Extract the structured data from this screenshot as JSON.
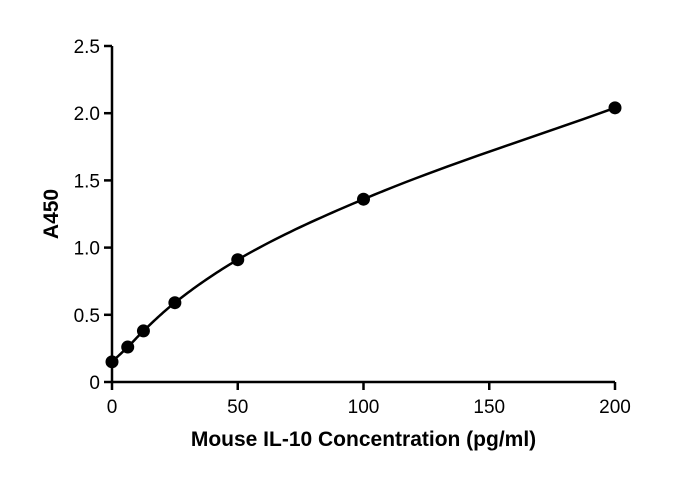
{
  "chart_data": {
    "type": "scatter",
    "title": "",
    "xlabel": "Mouse IL-10 Concentration (pg/ml)",
    "ylabel": "A450",
    "xlim": [
      0,
      200
    ],
    "ylim": [
      0,
      2.5
    ],
    "x_ticks": [
      0,
      50,
      100,
      150,
      200
    ],
    "x_tick_labels": [
      "0",
      "50",
      "100",
      "150",
      "200"
    ],
    "y_ticks": [
      0,
      0.5,
      1.0,
      1.5,
      2.0,
      2.5
    ],
    "y_tick_labels": [
      "0",
      "0.5",
      "1.0",
      "1.5",
      "2.0",
      "2.5"
    ],
    "grid": false,
    "legend": "none",
    "fit_line": "smooth curve",
    "series": [
      {
        "x": [
          0,
          6.25,
          12.5,
          25,
          50,
          100,
          200
        ],
        "y": [
          0.15,
          0.26,
          0.38,
          0.59,
          0.91,
          1.36,
          2.04
        ]
      }
    ],
    "colors": {
      "marker": "#000000",
      "line": "#000000"
    }
  }
}
